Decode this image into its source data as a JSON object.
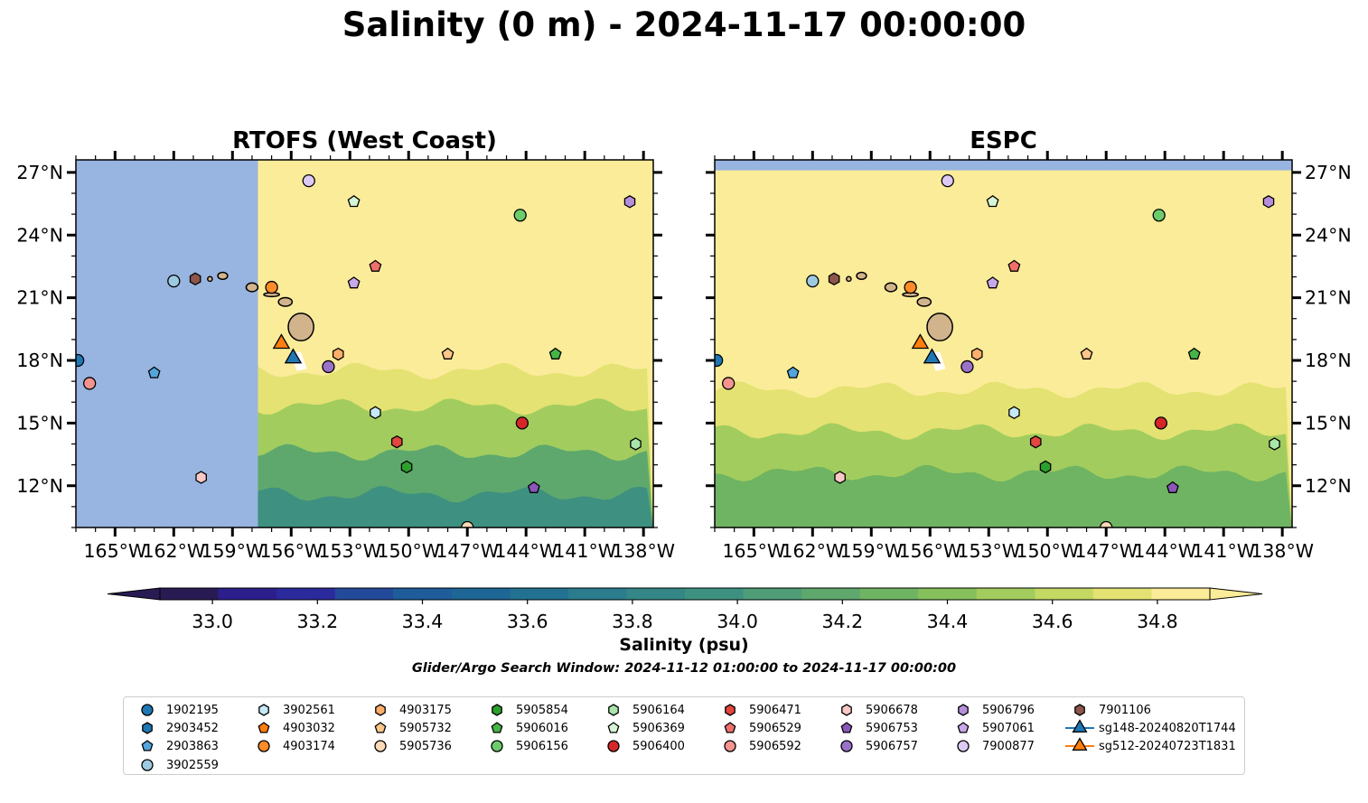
{
  "figure": {
    "title": "Salinity (0 m) - 2024-11-17 00:00:00",
    "search_window": "Glider/Argo Search Window: 2024-11-12 01:00:00 to 2024-11-17 00:00:00"
  },
  "colors": {
    "land": "#d2b48c",
    "ocean_mask": "#98b4e0",
    "colormap": [
      "#281b54",
      "#2c1f8c",
      "#2a2a9c",
      "#234a9a",
      "#1e5c9a",
      "#1d6696",
      "#227191",
      "#2b7c8c",
      "#348786",
      "#3e9180",
      "#4e9d77",
      "#5fa86d",
      "#6fb462",
      "#86c05c",
      "#a2cd5e",
      "#c4d964",
      "#e4e272",
      "#fbec99"
    ],
    "over_color": "#fbec99",
    "under_color": "#281b54"
  },
  "chart_data": [
    {
      "type": "heatmap",
      "title": "RTOFS (West Coast)",
      "field": "sea surface salinity",
      "units": "psu",
      "xlim": [
        -167,
        -137.5
      ],
      "ylim": [
        10,
        27.6
      ],
      "x_ticks": [
        -165,
        -162,
        -159,
        -156,
        -153,
        -150,
        -147,
        -144,
        -141,
        -138
      ],
      "x_tick_labels": [
        "165°W",
        "162°W",
        "159°W",
        "156°W",
        "153°W",
        "150°W",
        "147°W",
        "144°W",
        "141°W",
        "138°W"
      ],
      "y_ticks": [
        12,
        15,
        18,
        21,
        24,
        27
      ],
      "y_tick_labels": [
        "12°N",
        "15°N",
        "18°N",
        "21°N",
        "24°N",
        "27°N"
      ],
      "y_labels_side": "left",
      "no_data_region": {
        "lon_max": -157.7
      },
      "salinity_bands": [
        {
          "lat_from": 27.6,
          "lat_to": 19.5,
          "salinity": 34.9
        },
        {
          "lat_from": 19.5,
          "lat_to": 17.5,
          "salinity": 34.7
        },
        {
          "lat_from": 17.5,
          "lat_to": 15.8,
          "salinity": 34.5
        },
        {
          "lat_from": 15.8,
          "lat_to": 13.6,
          "salinity": 34.3
        },
        {
          "lat_from": 13.6,
          "lat_to": 11.6,
          "salinity": 34.0
        },
        {
          "lat_from": 11.6,
          "lat_to": 10.0,
          "salinity": 33.8
        }
      ]
    },
    {
      "type": "heatmap",
      "title": "ESPC",
      "field": "sea surface salinity",
      "units": "psu",
      "xlim": [
        -167,
        -137.5
      ],
      "ylim": [
        10,
        27.6
      ],
      "x_ticks": [
        -165,
        -162,
        -159,
        -156,
        -153,
        -150,
        -147,
        -144,
        -141,
        -138
      ],
      "x_tick_labels": [
        "165°W",
        "162°W",
        "159°W",
        "156°W",
        "153°W",
        "150°W",
        "147°W",
        "144°W",
        "141°W",
        "138°W"
      ],
      "y_ticks": [
        12,
        15,
        18,
        21,
        24,
        27
      ],
      "y_tick_labels": [
        "12°N",
        "15°N",
        "18°N",
        "21°N",
        "24°N",
        "27°N"
      ],
      "y_labels_side": "right",
      "no_data_region": {
        "lat_min": 27.1
      },
      "salinity_bands": [
        {
          "lat_from": 27.1,
          "lat_to": 20.0,
          "salinity": 34.9
        },
        {
          "lat_from": 20.0,
          "lat_to": 16.6,
          "salinity": 34.7
        },
        {
          "lat_from": 16.6,
          "lat_to": 14.6,
          "salinity": 34.5
        },
        {
          "lat_from": 14.6,
          "lat_to": 12.6,
          "salinity": 34.3
        },
        {
          "lat_from": 12.6,
          "lat_to": 10.0,
          "salinity": 34.1
        }
      ]
    }
  ],
  "colorbar": {
    "label": "Salinity (psu)",
    "vmin": 32.9,
    "vmax": 34.9,
    "step": 0.1,
    "extend": "both",
    "ticks": [
      33.0,
      33.2,
      33.4,
      33.6,
      33.8,
      34.0,
      34.2,
      34.4,
      34.6,
      34.8
    ],
    "tick_labels": [
      "33.0",
      "33.2",
      "33.4",
      "33.6",
      "33.8",
      "34.0",
      "34.2",
      "34.4",
      "34.6",
      "34.8"
    ]
  },
  "islands": [
    {
      "name": "Hawaii",
      "lon": -155.5,
      "lat": 19.6,
      "rx": 0.65,
      "ry": 0.7
    },
    {
      "name": "Maui",
      "lon": -156.3,
      "lat": 20.8,
      "rx": 0.35,
      "ry": 0.22
    },
    {
      "name": "Molokai",
      "lon": -157.0,
      "lat": 21.15,
      "rx": 0.4,
      "ry": 0.1
    },
    {
      "name": "Oahu",
      "lon": -158.0,
      "lat": 21.5,
      "rx": 0.3,
      "ry": 0.22
    },
    {
      "name": "Kauai",
      "lon": -159.5,
      "lat": 22.05,
      "rx": 0.25,
      "ry": 0.18
    },
    {
      "name": "Niihau",
      "lon": -160.15,
      "lat": 21.9,
      "rx": 0.12,
      "ry": 0.12
    }
  ],
  "platforms": [
    {
      "id": "1902195",
      "marker": "circle",
      "color": "#1f77b4",
      "lon": -166.9,
      "lat": 18.0
    },
    {
      "id": "2903452",
      "marker": "hexagon",
      "color": "#1f77b4"
    },
    {
      "id": "2903863",
      "marker": "pentagon",
      "color": "#53a5dc",
      "lon": -163.0,
      "lat": 17.4
    },
    {
      "id": "3902559",
      "marker": "circle",
      "color": "#9ecae1",
      "lon": -162.0,
      "lat": 21.8
    },
    {
      "id": "3902561",
      "marker": "hexagon",
      "color": "#c6e8f8",
      "lon": -151.7,
      "lat": 15.5
    },
    {
      "id": "4903032",
      "marker": "pentagon",
      "color": "#ff7f0e"
    },
    {
      "id": "4903174",
      "marker": "circle",
      "color": "#ff8c28",
      "lon": -157.0,
      "lat": 21.5
    },
    {
      "id": "4903175",
      "marker": "hexagon",
      "color": "#fdae6b",
      "lon": -153.6,
      "lat": 18.3
    },
    {
      "id": "5905732",
      "marker": "pentagon",
      "color": "#fdc68a",
      "lon": -148.0,
      "lat": 18.3
    },
    {
      "id": "5905736",
      "marker": "circle",
      "color": "#fdd9b5",
      "lon": -147.0,
      "lat": 10.0
    },
    {
      "id": "5905854",
      "marker": "hexagon",
      "color": "#2ca02c",
      "lon": -150.1,
      "lat": 12.9
    },
    {
      "id": "5906016",
      "marker": "pentagon",
      "color": "#46b446",
      "lon": -142.5,
      "lat": 18.3
    },
    {
      "id": "5906156",
      "marker": "circle",
      "color": "#6ccc6c",
      "lon": -144.3,
      "lat": 24.95
    },
    {
      "id": "5906164",
      "marker": "hexagon",
      "color": "#a9e6a9",
      "lon": -138.4,
      "lat": 14.0
    },
    {
      "id": "5906369",
      "marker": "pentagon",
      "color": "#d6f5d6",
      "lon": -152.8,
      "lat": 25.6
    },
    {
      "id": "5906400",
      "marker": "circle",
      "color": "#d62728",
      "lon": -144.2,
      "lat": 15.0
    },
    {
      "id": "5906471",
      "marker": "hexagon",
      "color": "#e3453f",
      "lon": -150.6,
      "lat": 14.1
    },
    {
      "id": "5906529",
      "marker": "pentagon",
      "color": "#ef6f6b",
      "lon": -151.7,
      "lat": 22.5
    },
    {
      "id": "5906592",
      "marker": "circle",
      "color": "#f4938f",
      "lon": -166.3,
      "lat": 16.9
    },
    {
      "id": "5906678",
      "marker": "hexagon",
      "color": "#fbc9c5",
      "lon": -160.6,
      "lat": 12.4
    },
    {
      "id": "5906753",
      "marker": "pentagon",
      "color": "#8a56b8",
      "lon": -143.6,
      "lat": 11.9
    },
    {
      "id": "5906757",
      "marker": "circle",
      "color": "#9a72c9",
      "lon": -154.1,
      "lat": 17.7
    },
    {
      "id": "5906796",
      "marker": "hexagon",
      "color": "#b68fdb",
      "lon": -138.7,
      "lat": 25.6
    },
    {
      "id": "5907061",
      "marker": "pentagon",
      "color": "#c8a8ea",
      "lon": -152.8,
      "lat": 21.7
    },
    {
      "id": "7900877",
      "marker": "circle",
      "color": "#dccaf5",
      "lon": -155.1,
      "lat": 26.6
    },
    {
      "id": "7901106",
      "marker": "hexagon",
      "color": "#8c564b",
      "lon": -160.9,
      "lat": 21.9
    },
    {
      "id": "sg148-20240820T1744",
      "marker": "triangle",
      "color": "#1f77b4",
      "line_color": "#1f77b4",
      "lon": -155.9,
      "lat": 18.1
    },
    {
      "id": "sg512-20240723T1831",
      "marker": "triangle",
      "color": "#ff7f0e",
      "line_color": "#ff7f0e",
      "lon": -156.5,
      "lat": 18.8
    }
  ]
}
